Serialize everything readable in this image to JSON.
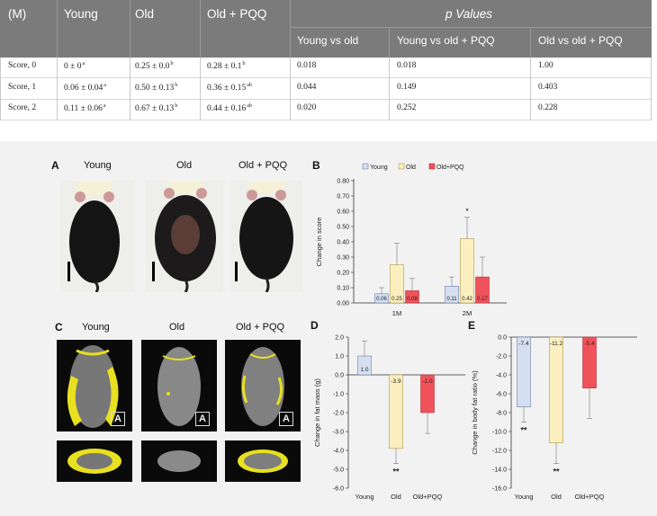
{
  "table": {
    "header": {
      "unit": "(M)",
      "young": "Young",
      "old": "Old",
      "old_pqq": "Old + PQQ",
      "p_values": "p Values",
      "young_vs_old": "Young vs old",
      "young_vs_old_pqq": "Young vs old + PQQ",
      "old_vs_old_pqq": "Old vs old + PQQ"
    },
    "rows": [
      {
        "label": "Score, 0",
        "young": "0 ± 0",
        "young_sup": "a",
        "old": "0.25 ± 0.0",
        "old_sup": "b",
        "pqq": "0.28 ± 0.1",
        "pqq_sup": "b",
        "p1": "0.018",
        "p2": "0.018",
        "p3": "1.00"
      },
      {
        "label": "Score, 1",
        "young": "0.06 ± 0.04",
        "young_sup": "a",
        "old": "0.50 ± 0.13",
        "old_sup": "b",
        "pqq": "0.36 ± 0.15",
        "pqq_sup": "ab",
        "p1": "0.044",
        "p2": "0.149",
        "p3": "0.403"
      },
      {
        "label": "Score, 2",
        "young": "0.11 ± 0.06",
        "young_sup": "a",
        "old": "0.67 ± 0.13",
        "old_sup": "b",
        "pqq": "0.44 ± 0.16",
        "pqq_sup": "ab",
        "p1": "0.020",
        "p2": "0.252",
        "p3": "0.228"
      }
    ]
  },
  "panels": {
    "A": {
      "letter": "A",
      "groups": [
        "Young",
        "Old",
        "Old + PQQ"
      ]
    },
    "C": {
      "letter": "C",
      "groups": [
        "Young",
        "Old",
        "Old + PQQ"
      ],
      "ct_marker": "A"
    }
  },
  "colors": {
    "young": "#d5dff0",
    "old": "#fbefc0",
    "pqq": "#f0525a",
    "young_edge": "#6a7fa8",
    "old_edge": "#b39a48",
    "pqq_edge": "#b7323a"
  },
  "chart_data": [
    {
      "panel": "B",
      "type": "bar",
      "ylabel": "Change in score",
      "ylim": [
        0,
        0.8
      ],
      "ticks": [
        "0.00",
        "0.10",
        "0.20",
        "0.30",
        "0.40",
        "0.50",
        "0.60",
        "0.70",
        "0.80"
      ],
      "legend": [
        "Young",
        "Old",
        "Old+PQQ"
      ],
      "categories": [
        "1M",
        "2M"
      ],
      "series": [
        {
          "name": "Young",
          "values": [
            0.06,
            0.11
          ],
          "errors": [
            0.04,
            0.06
          ],
          "labels": [
            "0.06",
            "0.11"
          ]
        },
        {
          "name": "Old",
          "values": [
            0.25,
            0.42
          ],
          "errors": [
            0.14,
            0.14
          ],
          "labels": [
            "0.25",
            "0.42"
          ]
        },
        {
          "name": "Old+PQQ",
          "values": [
            0.08,
            0.17
          ],
          "errors": [
            0.08,
            0.13
          ],
          "labels": [
            "0.08",
            "0.17"
          ]
        }
      ],
      "annotations": [
        {
          "category": "2M",
          "series": "Old",
          "text": "*"
        }
      ]
    },
    {
      "panel": "D",
      "type": "bar",
      "ylabel": "Change in fat mass (g)",
      "ylim": [
        -6,
        2
      ],
      "ticks": [
        "2.0",
        "1.0",
        "0.0",
        "-1.0",
        "-2.0",
        "-3.0",
        "-4.0",
        "-5.0",
        "-6.0"
      ],
      "categories": [
        "Young",
        "Old",
        "Old+PQQ"
      ],
      "values": [
        1.0,
        -3.9,
        -2.0
      ],
      "errors": [
        0.8,
        0.8,
        1.1
      ],
      "labels": [
        "1.0",
        "-3.9",
        "-2.0"
      ],
      "annotations": [
        {
          "category": "Old",
          "text": "**"
        }
      ]
    },
    {
      "panel": "E",
      "type": "bar",
      "ylabel": "Change in body fat ratio (%)",
      "ylim": [
        -16,
        0
      ],
      "ticks": [
        "0.0",
        "-2.0",
        "-4.0",
        "-6.0",
        "-8.0",
        "-10.0",
        "-12.0",
        "-14.0",
        "-16.0"
      ],
      "categories": [
        "Young",
        "Old",
        "Old+PQQ"
      ],
      "values": [
        -7.4,
        -11.2,
        -5.4
      ],
      "errors": [
        1.6,
        2.2,
        3.2
      ],
      "labels": [
        "-7.4",
        "-11.2",
        "-5.4"
      ],
      "annotations": [
        {
          "category": "Young",
          "text": "**"
        },
        {
          "category": "Old",
          "text": "**"
        }
      ]
    }
  ]
}
